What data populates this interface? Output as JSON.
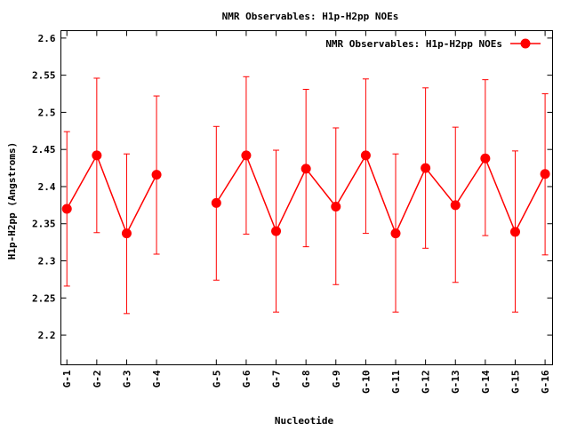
{
  "chart_data": {
    "type": "line",
    "title": "NMR Observables: H1p-H2pp NOEs",
    "xlabel": "Nucleotide",
    "ylabel": "H1p-H2pp (Angstroms)",
    "ylim": [
      2.16,
      2.61
    ],
    "yticks": [
      "2.2",
      "2.25",
      "2.3",
      "2.35",
      "2.4",
      "2.45",
      "2.5",
      "2.55",
      "2.6"
    ],
    "grid": false,
    "legend_position": "top-right",
    "series": [
      {
        "name": "NMR Observables: H1p-H2pp NOEs",
        "color": "#ff0000",
        "marker": "circle",
        "segments": [
          [
            {
              "label": "G-1",
              "pos": 1,
              "y": 2.37,
              "err_low": 2.266,
              "err_high": 2.474
            },
            {
              "label": "G-2",
              "pos": 2,
              "y": 2.442,
              "err_low": 2.338,
              "err_high": 2.546
            },
            {
              "label": "G-3",
              "pos": 3,
              "y": 2.337,
              "err_low": 2.229,
              "err_high": 2.444
            },
            {
              "label": "G-4",
              "pos": 4,
              "y": 2.416,
              "err_low": 2.309,
              "err_high": 2.522
            }
          ],
          [
            {
              "label": "G-5",
              "pos": 6,
              "y": 2.378,
              "err_low": 2.274,
              "err_high": 2.481
            },
            {
              "label": "G-6",
              "pos": 7,
              "y": 2.442,
              "err_low": 2.336,
              "err_high": 2.548
            },
            {
              "label": "G-7",
              "pos": 8,
              "y": 2.34,
              "err_low": 2.231,
              "err_high": 2.449
            },
            {
              "label": "G-8",
              "pos": 9,
              "y": 2.424,
              "err_low": 2.319,
              "err_high": 2.531
            },
            {
              "label": "G-9",
              "pos": 10,
              "y": 2.373,
              "err_low": 2.268,
              "err_high": 2.479
            },
            {
              "label": "G-10",
              "pos": 11,
              "y": 2.442,
              "err_low": 2.337,
              "err_high": 2.545
            },
            {
              "label": "G-11",
              "pos": 12,
              "y": 2.337,
              "err_low": 2.231,
              "err_high": 2.444
            },
            {
              "label": "G-12",
              "pos": 13,
              "y": 2.425,
              "err_low": 2.317,
              "err_high": 2.533
            },
            {
              "label": "G-13",
              "pos": 14,
              "y": 2.375,
              "err_low": 2.271,
              "err_high": 2.48
            },
            {
              "label": "G-14",
              "pos": 15,
              "y": 2.438,
              "err_low": 2.334,
              "err_high": 2.544
            },
            {
              "label": "G-15",
              "pos": 16,
              "y": 2.339,
              "err_low": 2.231,
              "err_high": 2.448
            },
            {
              "label": "G-16",
              "pos": 17,
              "y": 2.417,
              "err_low": 2.308,
              "err_high": 2.525
            }
          ]
        ]
      }
    ]
  }
}
